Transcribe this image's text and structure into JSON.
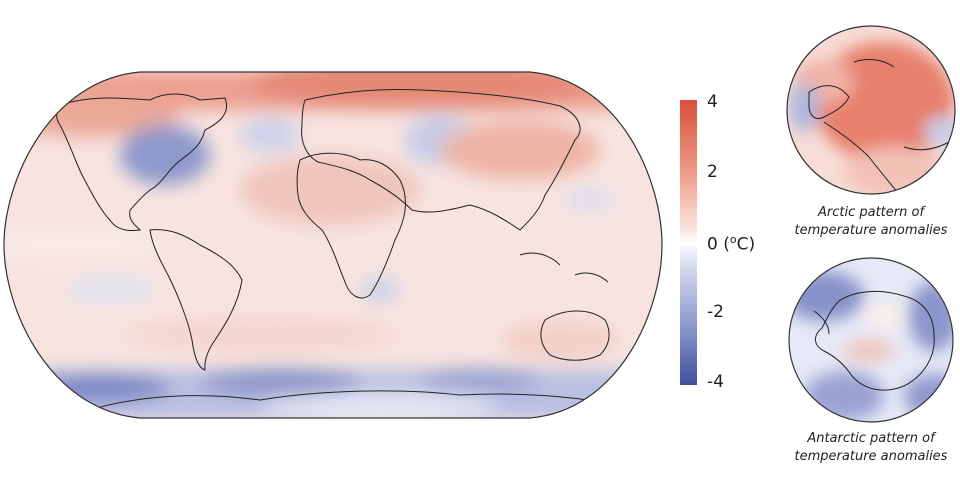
{
  "colorbar": {
    "ticks": [
      "4",
      "2",
      "0",
      "-2",
      "-4"
    ],
    "zero_unit_pre": " (",
    "zero_unit_sup": "o",
    "zero_unit_post": "C)",
    "range": [
      -4,
      4
    ],
    "colors": {
      "warm": "#d8503c",
      "neutral": "#ffffff",
      "cold": "#3f4f9c"
    }
  },
  "insets": {
    "arctic": {
      "caption_line1": "Arctic pattern of",
      "caption_line2": "temperature anomalies"
    },
    "antarctic": {
      "caption_line1": "Antarctic pattern of",
      "caption_line2": "temperature anomalies"
    }
  }
}
